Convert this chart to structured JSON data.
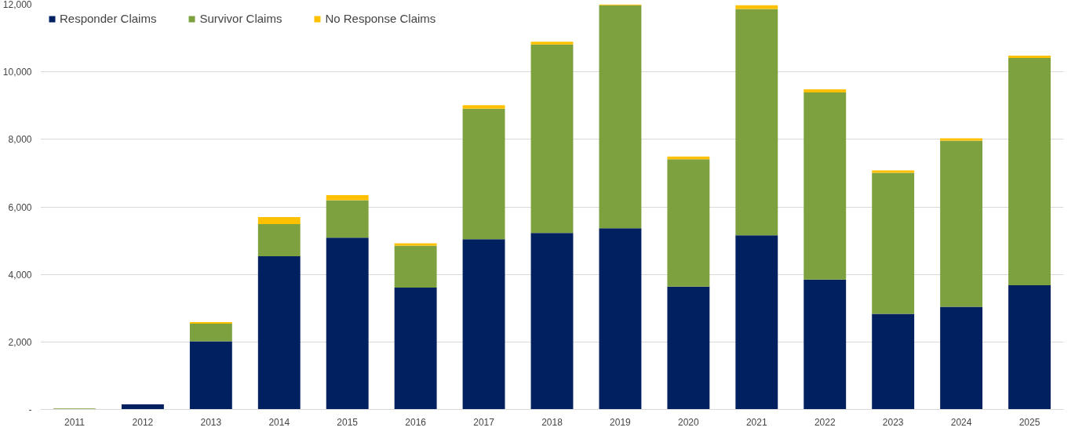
{
  "chart_data": {
    "type": "bar",
    "stacked": true,
    "categories": [
      "2011",
      "2012",
      "2013",
      "2014",
      "2015",
      "2016",
      "2017",
      "2018",
      "2019",
      "2020",
      "2021",
      "2022",
      "2023",
      "2024",
      "2025"
    ],
    "series": [
      {
        "name": "Responder Claims",
        "color": "#002060",
        "values": [
          null,
          150,
          2020,
          4540,
          5090,
          3610,
          5040,
          5230,
          5370,
          3640,
          5160,
          3850,
          2830,
          3040,
          3680
        ]
      },
      {
        "name": "Survivor Claims",
        "color": "#7ea13f",
        "values": [
          30,
          null,
          520,
          950,
          1110,
          1240,
          3870,
          5580,
          6600,
          3770,
          6700,
          5540,
          4180,
          4920,
          6730
        ]
      },
      {
        "name": "No Response Claims",
        "color": "#ffc000",
        "values": [
          0,
          0,
          50,
          210,
          150,
          70,
          100,
          80,
          30,
          80,
          110,
          90,
          70,
          70,
          70
        ]
      }
    ],
    "ylim": [
      0,
      12000
    ],
    "yticks": [
      {
        "value": 0,
        "label": "-"
      },
      {
        "value": 2000,
        "label": "2,000"
      },
      {
        "value": 4000,
        "label": "4,000"
      },
      {
        "value": 6000,
        "label": "6,000"
      },
      {
        "value": 8000,
        "label": "8,000"
      },
      {
        "value": 10000,
        "label": "10,000"
      },
      {
        "value": 12000,
        "label": "12,000"
      }
    ],
    "grid": "y",
    "legend": "top left"
  }
}
